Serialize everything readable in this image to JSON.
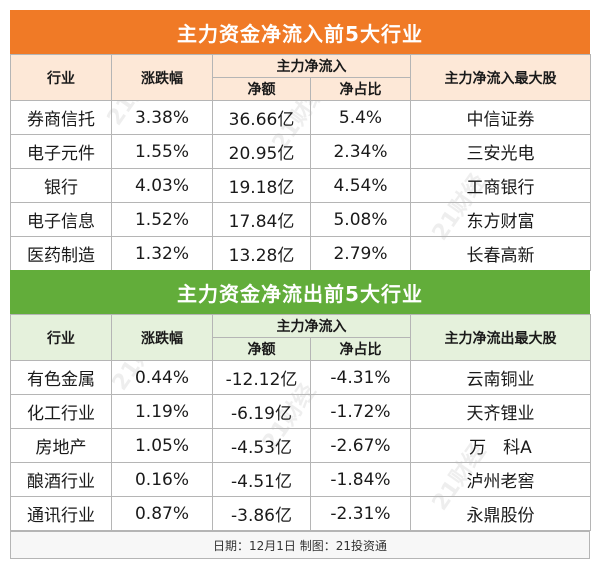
{
  "inflow": {
    "title": "主力资金净流入前5大行业",
    "headers": {
      "industry": "行业",
      "change": "涨跌幅",
      "main_flow": "主力净流入",
      "net_amount": "净额",
      "net_ratio": "净占比",
      "top_stock": "主力净流入最大股"
    },
    "rows": [
      {
        "industry": "券商信托",
        "change": "3.38%",
        "amount": "36.66亿",
        "ratio": "5.4%",
        "stock": "中信证券"
      },
      {
        "industry": "电子元件",
        "change": "1.55%",
        "amount": "20.95亿",
        "ratio": "2.34%",
        "stock": "三安光电"
      },
      {
        "industry": "银行",
        "change": "4.03%",
        "amount": "19.18亿",
        "ratio": "4.54%",
        "stock": "工商银行"
      },
      {
        "industry": "电子信息",
        "change": "1.52%",
        "amount": "17.84亿",
        "ratio": "5.08%",
        "stock": "东方财富"
      },
      {
        "industry": "医药制造",
        "change": "1.32%",
        "amount": "13.28亿",
        "ratio": "2.79%",
        "stock": "长春高新"
      }
    ]
  },
  "outflow": {
    "title": "主力资金净流出前5大行业",
    "headers": {
      "industry": "行业",
      "change": "涨跌幅",
      "main_flow": "主力净流入",
      "net_amount": "净额",
      "net_ratio": "净占比",
      "top_stock": "主力净流出最大股"
    },
    "rows": [
      {
        "industry": "有色金属",
        "change": "0.44%",
        "amount": "-12.12亿",
        "ratio": "-4.31%",
        "stock": "云南铜业"
      },
      {
        "industry": "化工行业",
        "change": "1.19%",
        "amount": "-6.19亿",
        "ratio": "-1.72%",
        "stock": "天齐锂业"
      },
      {
        "industry": "房地产",
        "change": "1.05%",
        "amount": "-4.53亿",
        "ratio": "-2.67%",
        "stock": "万　科A"
      },
      {
        "industry": "酿酒行业",
        "change": "0.16%",
        "amount": "-4.51亿",
        "ratio": "-1.84%",
        "stock": "泸州老窖"
      },
      {
        "industry": "通讯行业",
        "change": "0.87%",
        "amount": "-3.86亿",
        "ratio": "-2.31%",
        "stock": "永鼎股份"
      }
    ]
  },
  "footer": "日期：12月1日  制图：21投资通",
  "watermark": "21财经",
  "colors": {
    "inflow_banner": "#f07a26",
    "inflow_header_bg": "#fde8d7",
    "outflow_banner": "#62ad3a",
    "outflow_header_bg": "#e5f1dc",
    "border": "#b5b5b5"
  }
}
